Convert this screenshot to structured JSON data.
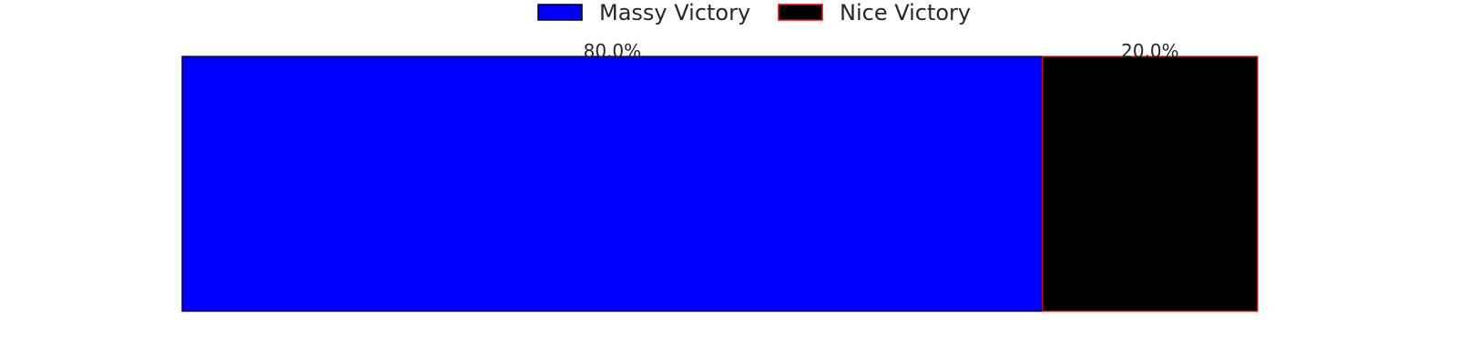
{
  "chart_data": {
    "type": "bar",
    "orientation": "horizontal-stacked",
    "title": "",
    "xlabel": "",
    "ylabel": "",
    "grid": false,
    "axes_visible": false,
    "xlim": [
      0,
      100
    ],
    "legend_placement": "top-center",
    "series": [
      {
        "name": "Massy Victory",
        "values": [
          80.0
        ],
        "label": "80.0%",
        "fill_color": "#0000ff",
        "edge_color": "#000000"
      },
      {
        "name": "Nice Victory",
        "values": [
          20.0
        ],
        "label": "20.0%",
        "fill_color": "#000000",
        "edge_color": "#ff0000"
      }
    ]
  }
}
